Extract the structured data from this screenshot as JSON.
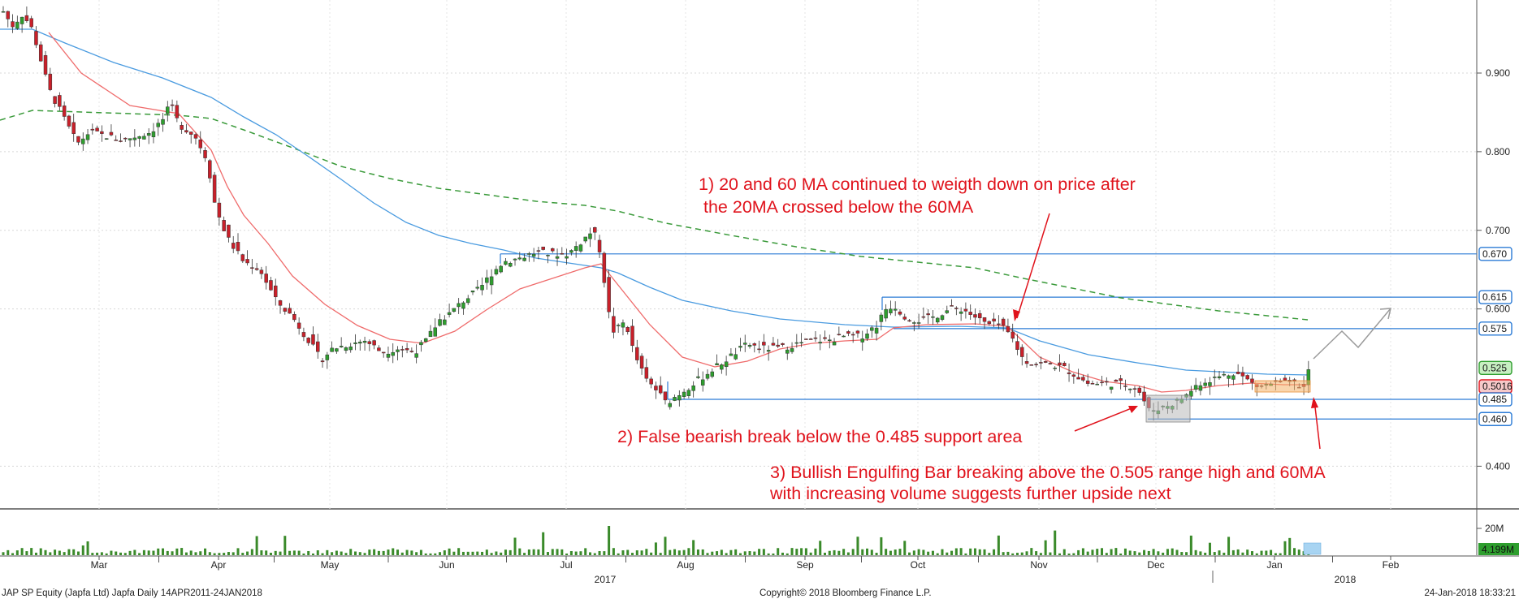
{
  "chart_data": {
    "type": "candlestick",
    "y_ticks": [
      "0.900",
      "0.800",
      "0.700",
      "0.600",
      "0.400"
    ],
    "ylim": [
      0.33,
      1.0
    ],
    "x_labels": [
      "Mar",
      "Apr",
      "May",
      "Jun",
      "Jul",
      "Aug",
      "Sep",
      "Oct",
      "Nov",
      "Dec",
      "Jan",
      "Feb"
    ],
    "year_labels": [
      "2017",
      "2018"
    ],
    "volume_tick": "20M",
    "volume_last": "4.199M",
    "price_tags": [
      {
        "value": "0.670",
        "color": "#2b7bd6"
      },
      {
        "value": "0.615",
        "color": "#2b7bd6"
      },
      {
        "value": "0.575",
        "color": "#2b7bd6"
      },
      {
        "value": "0.525",
        "color": "#2e9e2e"
      },
      {
        "value": "0.5016",
        "color": "#e0131c"
      },
      {
        "value": "0.485",
        "color": "#2b7bd6"
      },
      {
        "value": "0.460",
        "color": "#2b7bd6"
      }
    ],
    "levels": [
      0.67,
      0.615,
      0.575,
      0.485,
      0.46
    ],
    "annotations": [
      "1) 20 and 60 MA continued to weigth down on price after",
      "the 20MA crossed below the 60MA",
      "2) False bearish break below the 0.485 support area",
      "3) Bullish Engulfing Bar breaking above the 0.505 range high and 60MA",
      "with increasing volume suggests further upside next"
    ],
    "colors": {
      "up": "#2e9e2e",
      "down": "#c9202a",
      "ma20": "#ef6b6b",
      "ma60": "#4a9be0",
      "ma200": "#3a9a3a",
      "level": "#2b7bd6"
    }
  },
  "footer": {
    "left": "JAP SP Equity (Japfa Ltd) Japfa  Daily 14APR2011-24JAN2018",
    "center": "Copyright© 2018 Bloomberg Finance L.P.",
    "right": "24-Jan-2018 18:33:21"
  }
}
